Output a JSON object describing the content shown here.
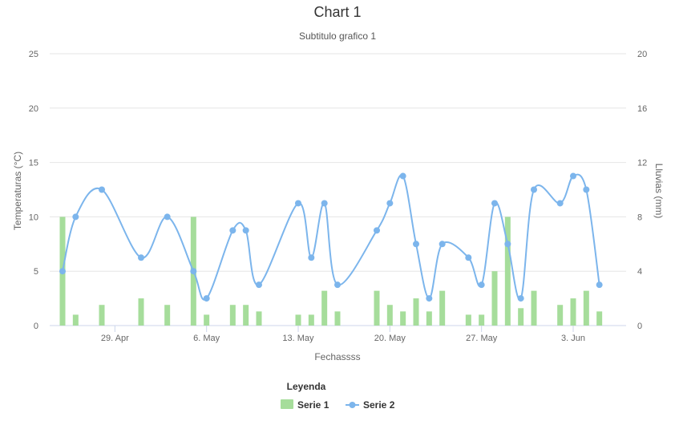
{
  "chart_data": {
    "type": "bar+line",
    "title": "Chart 1",
    "subtitle": "Subtitulo grafico 1",
    "xlabel": "Fechassss",
    "ylabel_left": "Temperaturas (°C)",
    "ylabel_right": "Lluvias (mm)",
    "x_ticks": [
      "29. Apr",
      "6. May",
      "13. May",
      "20. May",
      "27. May",
      "3. Jun"
    ],
    "x_tick_dates": [
      "2017-04-29",
      "2017-05-06",
      "2017-05-13",
      "2017-05-20",
      "2017-05-27",
      "2017-06-03"
    ],
    "x_range": [
      "2017-04-25",
      "2017-06-06"
    ],
    "y_left": {
      "min": 0,
      "max": 25,
      "ticks": [
        0,
        5,
        10,
        15,
        20,
        25
      ]
    },
    "y_right": {
      "min": 0,
      "max": 20,
      "ticks": [
        0,
        4,
        8,
        12,
        16,
        20
      ]
    },
    "grid": true,
    "legend": {
      "title": "Leyenda",
      "position": "bottom-center"
    },
    "series": [
      {
        "name": "Serie 1",
        "type": "column",
        "axis": "left",
        "color": "#a6dd9b",
        "points": [
          [
            "2017-04-25",
            10
          ],
          [
            "2017-04-26",
            1
          ],
          [
            "2017-04-28",
            1.9
          ],
          [
            "2017-05-01",
            2.5
          ],
          [
            "2017-05-03",
            1.9
          ],
          [
            "2017-05-05",
            10
          ],
          [
            "2017-05-06",
            1
          ],
          [
            "2017-05-08",
            1.9
          ],
          [
            "2017-05-09",
            1.9
          ],
          [
            "2017-05-10",
            1.3
          ],
          [
            "2017-05-13",
            1
          ],
          [
            "2017-05-14",
            1
          ],
          [
            "2017-05-15",
            3.2
          ],
          [
            "2017-05-16",
            1.3
          ],
          [
            "2017-05-19",
            3.2
          ],
          [
            "2017-05-20",
            1.9
          ],
          [
            "2017-05-21",
            1.3
          ],
          [
            "2017-05-22",
            2.5
          ],
          [
            "2017-05-23",
            1.3
          ],
          [
            "2017-05-24",
            3.2
          ],
          [
            "2017-05-26",
            1
          ],
          [
            "2017-05-27",
            1
          ],
          [
            "2017-05-28",
            5
          ],
          [
            "2017-05-29",
            10
          ],
          [
            "2017-05-30",
            1.6
          ],
          [
            "2017-05-31",
            3.2
          ],
          [
            "2017-06-02",
            1.9
          ],
          [
            "2017-06-03",
            2.5
          ],
          [
            "2017-06-04",
            3.2
          ],
          [
            "2017-06-05",
            1.3
          ]
        ]
      },
      {
        "name": "Serie 2",
        "type": "spline",
        "axis": "right",
        "color": "#7cb5ec",
        "points": [
          [
            "2017-04-25",
            4
          ],
          [
            "2017-04-26",
            8
          ],
          [
            "2017-04-28",
            10
          ],
          [
            "2017-05-01",
            5
          ],
          [
            "2017-05-03",
            8
          ],
          [
            "2017-05-05",
            4
          ],
          [
            "2017-05-06",
            2
          ],
          [
            "2017-05-08",
            7
          ],
          [
            "2017-05-09",
            7
          ],
          [
            "2017-05-10",
            3
          ],
          [
            "2017-05-13",
            9
          ],
          [
            "2017-05-14",
            5
          ],
          [
            "2017-05-15",
            9
          ],
          [
            "2017-05-16",
            3
          ],
          [
            "2017-05-19",
            7
          ],
          [
            "2017-05-20",
            9
          ],
          [
            "2017-05-21",
            11
          ],
          [
            "2017-05-22",
            6
          ],
          [
            "2017-05-23",
            2
          ],
          [
            "2017-05-24",
            6
          ],
          [
            "2017-05-26",
            5
          ],
          [
            "2017-05-27",
            3
          ],
          [
            "2017-05-28",
            9
          ],
          [
            "2017-05-29",
            6
          ],
          [
            "2017-05-30",
            2
          ],
          [
            "2017-05-31",
            10
          ],
          [
            "2017-06-02",
            9
          ],
          [
            "2017-06-03",
            11
          ],
          [
            "2017-06-04",
            10
          ],
          [
            "2017-06-05",
            3
          ]
        ]
      }
    ]
  }
}
